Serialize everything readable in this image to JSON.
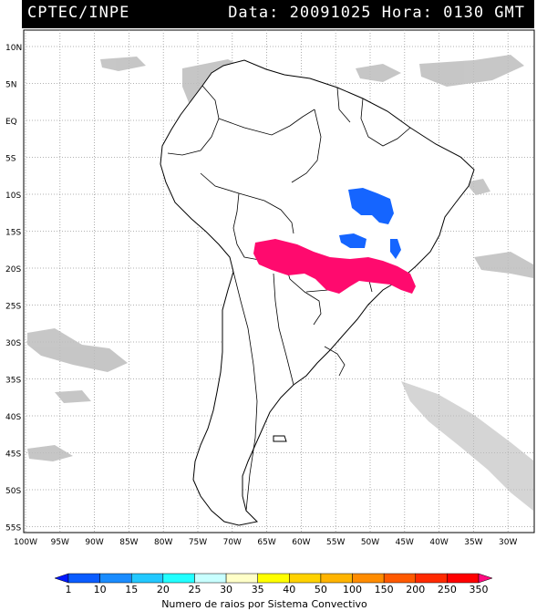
{
  "header": {
    "title": "CPTEC/INPE",
    "datetime": "Data: 20091025 Hora: 0130 GMT"
  },
  "map": {
    "lat_labels": [
      "10N",
      "5N",
      "EQ",
      "5S",
      "10S",
      "15S",
      "20S",
      "25S",
      "30S",
      "35S",
      "40S",
      "45S",
      "50S",
      "55S"
    ],
    "lon_labels": [
      "100W",
      "95W",
      "90W",
      "85W",
      "80W",
      "75W",
      "70W",
      "65W",
      "60W",
      "55W",
      "50W",
      "45W",
      "40W",
      "35W",
      "30W"
    ],
    "colors": {
      "land": "#ffffff",
      "border": "#000000",
      "grid": "#999999",
      "cloud": "#bdbdbd",
      "lightning_low": "#1565ff",
      "lightning_high": "#ff0a6e"
    }
  },
  "colorbar": {
    "ticks": [
      "1",
      "10",
      "15",
      "20",
      "25",
      "30",
      "35",
      "40",
      "50",
      "100",
      "150",
      "200",
      "250",
      "350"
    ],
    "colors": [
      "#0018ff",
      "#0a5cff",
      "#1a8cff",
      "#22c8ff",
      "#22ffff",
      "#c8ffff",
      "#ffffc8",
      "#ffff00",
      "#ffd200",
      "#ffb400",
      "#ff8c00",
      "#ff5a00",
      "#ff2a00",
      "#ff0000",
      "#ff0a80"
    ],
    "label": "Numero de raios por Sistema Convectivo"
  }
}
